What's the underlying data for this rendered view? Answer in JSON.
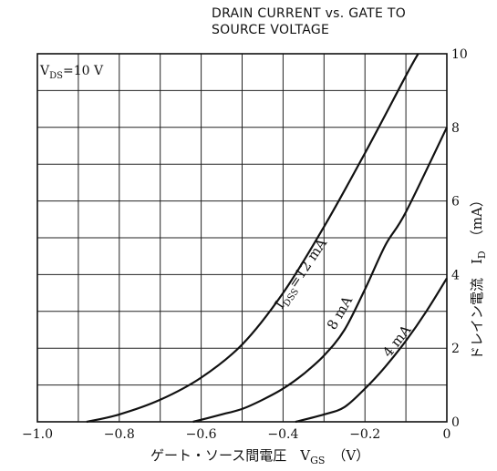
{
  "chart_data": {
    "type": "line",
    "title_lines": [
      "DRAIN CURRENT vs. GATE TO",
      "SOURCE VOLTAGE"
    ],
    "condition": "V<sub>DS</sub>=10 V",
    "condition_parts": {
      "main": "V",
      "sub": "DS",
      "rest": "=10 V"
    },
    "xlabel": "ゲート・ソース間電圧　V",
    "xlabel_sub": "GS",
    "xlabel_unit": "（V）",
    "ylabel": "ドレイン電流　I",
    "ylabel_sub": "D",
    "ylabel_unit": "（mA）",
    "xlim": [
      -1.0,
      0
    ],
    "ylim": [
      0,
      10
    ],
    "x_ticks": [
      "−1.0",
      "−0.8",
      "−0.6",
      "−0.4",
      "−0.2",
      "0"
    ],
    "x_tick_values": [
      -1.0,
      -0.8,
      -0.6,
      -0.4,
      -0.2,
      0
    ],
    "y_ticks": [
      "0",
      "2",
      "4",
      "6",
      "8",
      "10"
    ],
    "y_tick_values": [
      0,
      2,
      4,
      6,
      8,
      10
    ],
    "grid": true,
    "series": [
      {
        "name": "I_DSS=12 mA",
        "label_main": "I",
        "label_sub": "DSS",
        "label_rest": "=12 mA",
        "x": [
          -0.88,
          -0.8,
          -0.7,
          -0.6,
          -0.5,
          -0.4,
          -0.3,
          -0.2,
          -0.1,
          -0.07
        ],
        "y": [
          0.0,
          0.2,
          0.6,
          1.2,
          2.1,
          3.5,
          5.3,
          7.3,
          9.4,
          10.0
        ]
      },
      {
        "name": "8 mA",
        "label_main": "8 mA",
        "x": [
          -0.62,
          -0.55,
          -0.5,
          -0.45,
          -0.4,
          -0.35,
          -0.3,
          -0.25,
          -0.2,
          -0.15,
          -0.1,
          0.0
        ],
        "y": [
          0.0,
          0.2,
          0.35,
          0.6,
          0.9,
          1.3,
          1.8,
          2.5,
          3.6,
          4.8,
          5.7,
          8.0
        ]
      },
      {
        "name": "4 mA",
        "label_main": "4 mA",
        "x": [
          -0.37,
          -0.3,
          -0.25,
          -0.2,
          -0.15,
          -0.1,
          -0.05,
          0.0
        ],
        "y": [
          0.0,
          0.2,
          0.4,
          0.9,
          1.5,
          2.2,
          3.0,
          3.9
        ]
      }
    ]
  }
}
